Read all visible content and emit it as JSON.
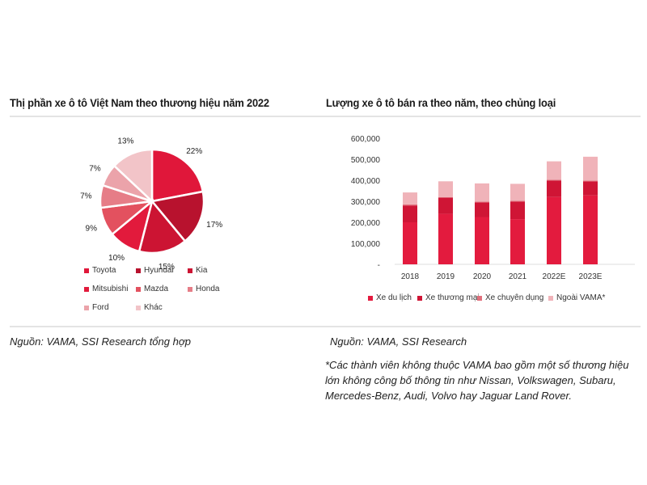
{
  "left_panel": {
    "title": "Thị phần xe ô tô Việt Nam theo thương hiệu năm 2022",
    "source": "Nguồn: VAMA, SSI Research tổng hợp",
    "legend": [
      {
        "label": "Toyota",
        "color": "#e0173a"
      },
      {
        "label": "Hyundai",
        "color": "#b8122e"
      },
      {
        "label": "Kia",
        "color": "#cc1433"
      },
      {
        "label": "Mitsubishi",
        "color": "#e21a3c"
      },
      {
        "label": "Mazda",
        "color": "#e3515f"
      },
      {
        "label": "Honda",
        "color": "#e67d87"
      },
      {
        "label": "Ford",
        "color": "#eba3aa"
      },
      {
        "label": "Khác",
        "color": "#f2c4c8"
      }
    ],
    "pie_labels": [
      "22%",
      "17%",
      "15%",
      "10%",
      "9%",
      "7%",
      "7%",
      "13%"
    ]
  },
  "right_panel": {
    "title": "Lượng xe ô tô bán ra theo năm, theo chủng loại",
    "source": "Nguồn: VAMA, SSI Research",
    "note": "*Các thành viên không thuộc VAMA bao gồm một số thương hiệu lớn không công bố thông tin như Nissan, Volkswagen, Subaru, Mercedes-Benz, Audi, Volvo hay Jaguar Land Rover.",
    "y_ticks": [
      "600,000",
      "500,000",
      "400,000",
      "300,000",
      "200,000",
      "100,000",
      "-"
    ],
    "x_labels": [
      "2018",
      "2019",
      "2020",
      "2021",
      "2022E",
      "2023E"
    ],
    "legend": [
      {
        "label": "Xe du lịch",
        "color": "#e31b3e"
      },
      {
        "label": "Xe thương mại",
        "color": "#cf1535"
      },
      {
        "label": "Xe chuyên dụng",
        "color": "#e0707c"
      },
      {
        "label": "Ngoài VAMA*",
        "color": "#f0b3b9"
      }
    ]
  },
  "chart_data": [
    {
      "type": "pie",
      "title": "Thị phần xe ô tô Việt Nam theo thương hiệu năm 2022",
      "categories": [
        "Toyota",
        "Hyundai",
        "Kia",
        "Mitsubishi",
        "Mazda",
        "Honda",
        "Ford",
        "Khác"
      ],
      "values": [
        22,
        17,
        15,
        10,
        9,
        7,
        7,
        13
      ],
      "unit": "%",
      "legend_position": "bottom"
    },
    {
      "type": "bar",
      "stacked": true,
      "title": "Lượng xe ô tô bán ra theo năm, theo chủng loại",
      "categories": [
        "2018",
        "2019",
        "2020",
        "2021",
        "2022E",
        "2023E"
      ],
      "series": [
        {
          "name": "Xe du lịch",
          "values": [
            200000,
            240000,
            225000,
            215000,
            320000,
            328000
          ]
        },
        {
          "name": "Xe thương mại",
          "values": [
            80000,
            77000,
            70000,
            84000,
            78000,
            67000
          ]
        },
        {
          "name": "Xe chuyên dụng",
          "values": [
            5000,
            3000,
            3000,
            3000,
            4000,
            3000
          ]
        },
        {
          "name": "Ngoài VAMA*",
          "values": [
            57000,
            75000,
            87000,
            81000,
            88000,
            114000
          ]
        }
      ],
      "xlabel": "",
      "ylabel": "",
      "ylim": [
        0,
        600000
      ],
      "y_ticks": [
        0,
        100000,
        200000,
        300000,
        400000,
        500000,
        600000
      ],
      "grid": false,
      "legend_position": "bottom"
    }
  ]
}
